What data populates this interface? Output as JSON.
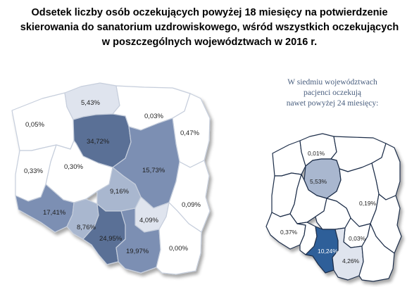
{
  "title": {
    "line1": "Odsetek liczby osób oczekujących powyżej 18 miesięcy na potwierdzenie",
    "line2": "skierowania do sanatorium uzdrowiskowego, wśród wszystkich oczekujących",
    "line3": "w poszczególnych województwach w 2016 r."
  },
  "note": {
    "line1": "W siedmiu województwach",
    "line2": "pacjenci oczekują",
    "line3": "nawet powyżej 24 miesięcy:"
  },
  "colors": {
    "none": "#ffffff",
    "low": "#dfe4ee",
    "mid": "#a9b7cf",
    "high": "#7b8fb3",
    "top": "#5a7096",
    "accent": "#2e5f99",
    "border": "#1f2e4a",
    "note_text": "#4a5f7f"
  },
  "map_18": {
    "regions": [
      {
        "name": "pomorskie",
        "value": "5,43%",
        "level": "low"
      },
      {
        "name": "warmińsko-mazurskie",
        "value": "0,03%",
        "level": "none"
      },
      {
        "name": "zachodniopomorskie",
        "value": "0,05%",
        "level": "none"
      },
      {
        "name": "kujawsko-pomorskie",
        "value": "34,72%",
        "level": "top"
      },
      {
        "name": "podlaskie",
        "value": "0,47%",
        "level": "none"
      },
      {
        "name": "lubuskie",
        "value": "0,33%",
        "level": "none"
      },
      {
        "name": "wielkopolskie",
        "value": "0,30%",
        "level": "none"
      },
      {
        "name": "mazowieckie",
        "value": "15,73%",
        "level": "high"
      },
      {
        "name": "łódzkie",
        "value": "9,16%",
        "level": "mid"
      },
      {
        "name": "lubelskie",
        "value": "0,09%",
        "level": "none"
      },
      {
        "name": "dolnośląskie",
        "value": "17,41%",
        "level": "high"
      },
      {
        "name": "opolskie",
        "value": "8,76%",
        "level": "mid"
      },
      {
        "name": "świętokrzyskie",
        "value": "4,09%",
        "level": "low"
      },
      {
        "name": "śląskie",
        "value": "24,95%",
        "level": "top"
      },
      {
        "name": "małopolskie",
        "value": "19,97%",
        "level": "high"
      },
      {
        "name": "podkarpackie",
        "value": "0,00%",
        "level": "none"
      }
    ]
  },
  "map_24": {
    "regions": [
      {
        "name": "pomorskie",
        "value": "0,01%",
        "level": "none"
      },
      {
        "name": "kujawsko-pomorskie",
        "value": "5,53%",
        "level": "mid"
      },
      {
        "name": "mazowieckie",
        "value": "0,19%",
        "level": "none"
      },
      {
        "name": "dolnośląskie",
        "value": "0,37%",
        "level": "none"
      },
      {
        "name": "świętokrzyskie",
        "value": "0,03%",
        "level": "none"
      },
      {
        "name": "śląskie",
        "value": "10,24%",
        "level": "accent"
      },
      {
        "name": "małopolskie",
        "value": "4,26%",
        "level": "low"
      }
    ]
  }
}
